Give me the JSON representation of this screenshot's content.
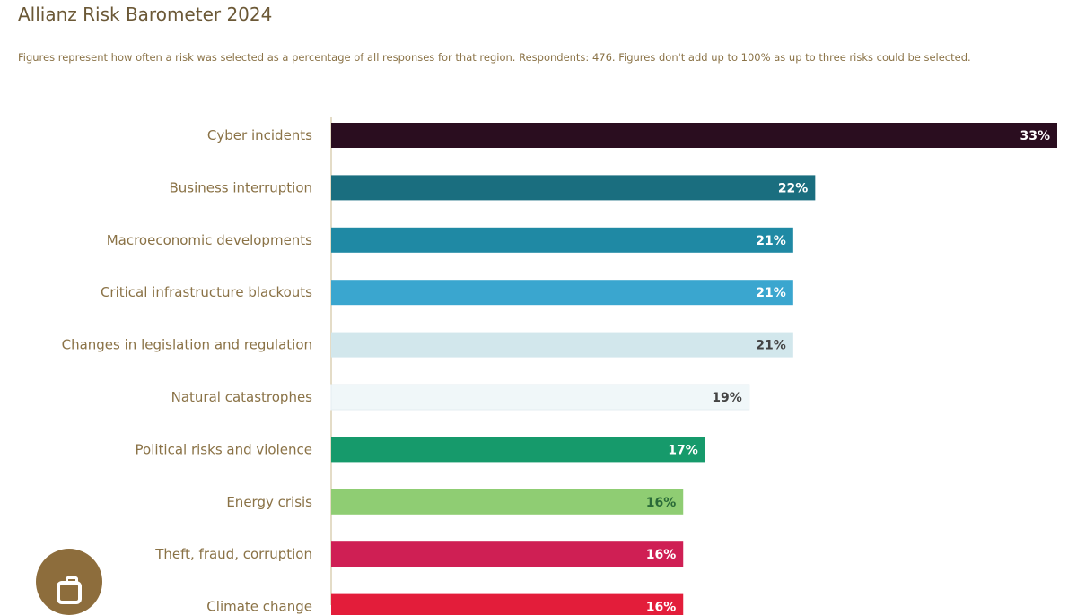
{
  "header": {
    "title": "Allianz Risk Barometer 2024",
    "subtitle": "Figures represent how often a risk was selected as a percentage of all responses for that region. Respondents: 476. Figures don't add up to 100% as up to three risks could be selected."
  },
  "chart_data": {
    "type": "bar",
    "orientation": "horizontal",
    "categories": [
      "Cyber incidents",
      "Business interruption",
      "Macroeconomic developments",
      "Critical infrastructure blackouts",
      "Changes in legislation and regulation",
      "Natural catastrophes",
      "Political risks and violence",
      "Energy crisis",
      "Theft, fraud, corruption",
      "Climate change"
    ],
    "values": [
      33,
      22,
      21,
      21,
      21,
      19,
      17,
      16,
      16,
      16
    ],
    "value_labels": [
      "33%",
      "22%",
      "21%",
      "21%",
      "21%",
      "19%",
      "17%",
      "16%",
      "16%",
      "16%"
    ],
    "colors": [
      "#2a0d1f",
      "#1a6e7f",
      "#1f89a4",
      "#3aa6cf",
      "#d2e7ec",
      "#f0f7f9",
      "#169a6b",
      "#8fcd73",
      "#cf1f54",
      "#e31d3a"
    ],
    "label_colors": [
      "#ffffff",
      "#ffffff",
      "#ffffff",
      "#ffffff",
      "#444444",
      "#444444",
      "#ffffff",
      "#2a6a38",
      "#ffffff",
      "#ffffff"
    ],
    "xlim": [
      0,
      33
    ],
    "category_label_color": "#8a7246",
    "axis_color": "#c9b88f",
    "grid": false
  },
  "fab": {
    "icon": "camera-icon",
    "color": "#8d6d3c"
  }
}
